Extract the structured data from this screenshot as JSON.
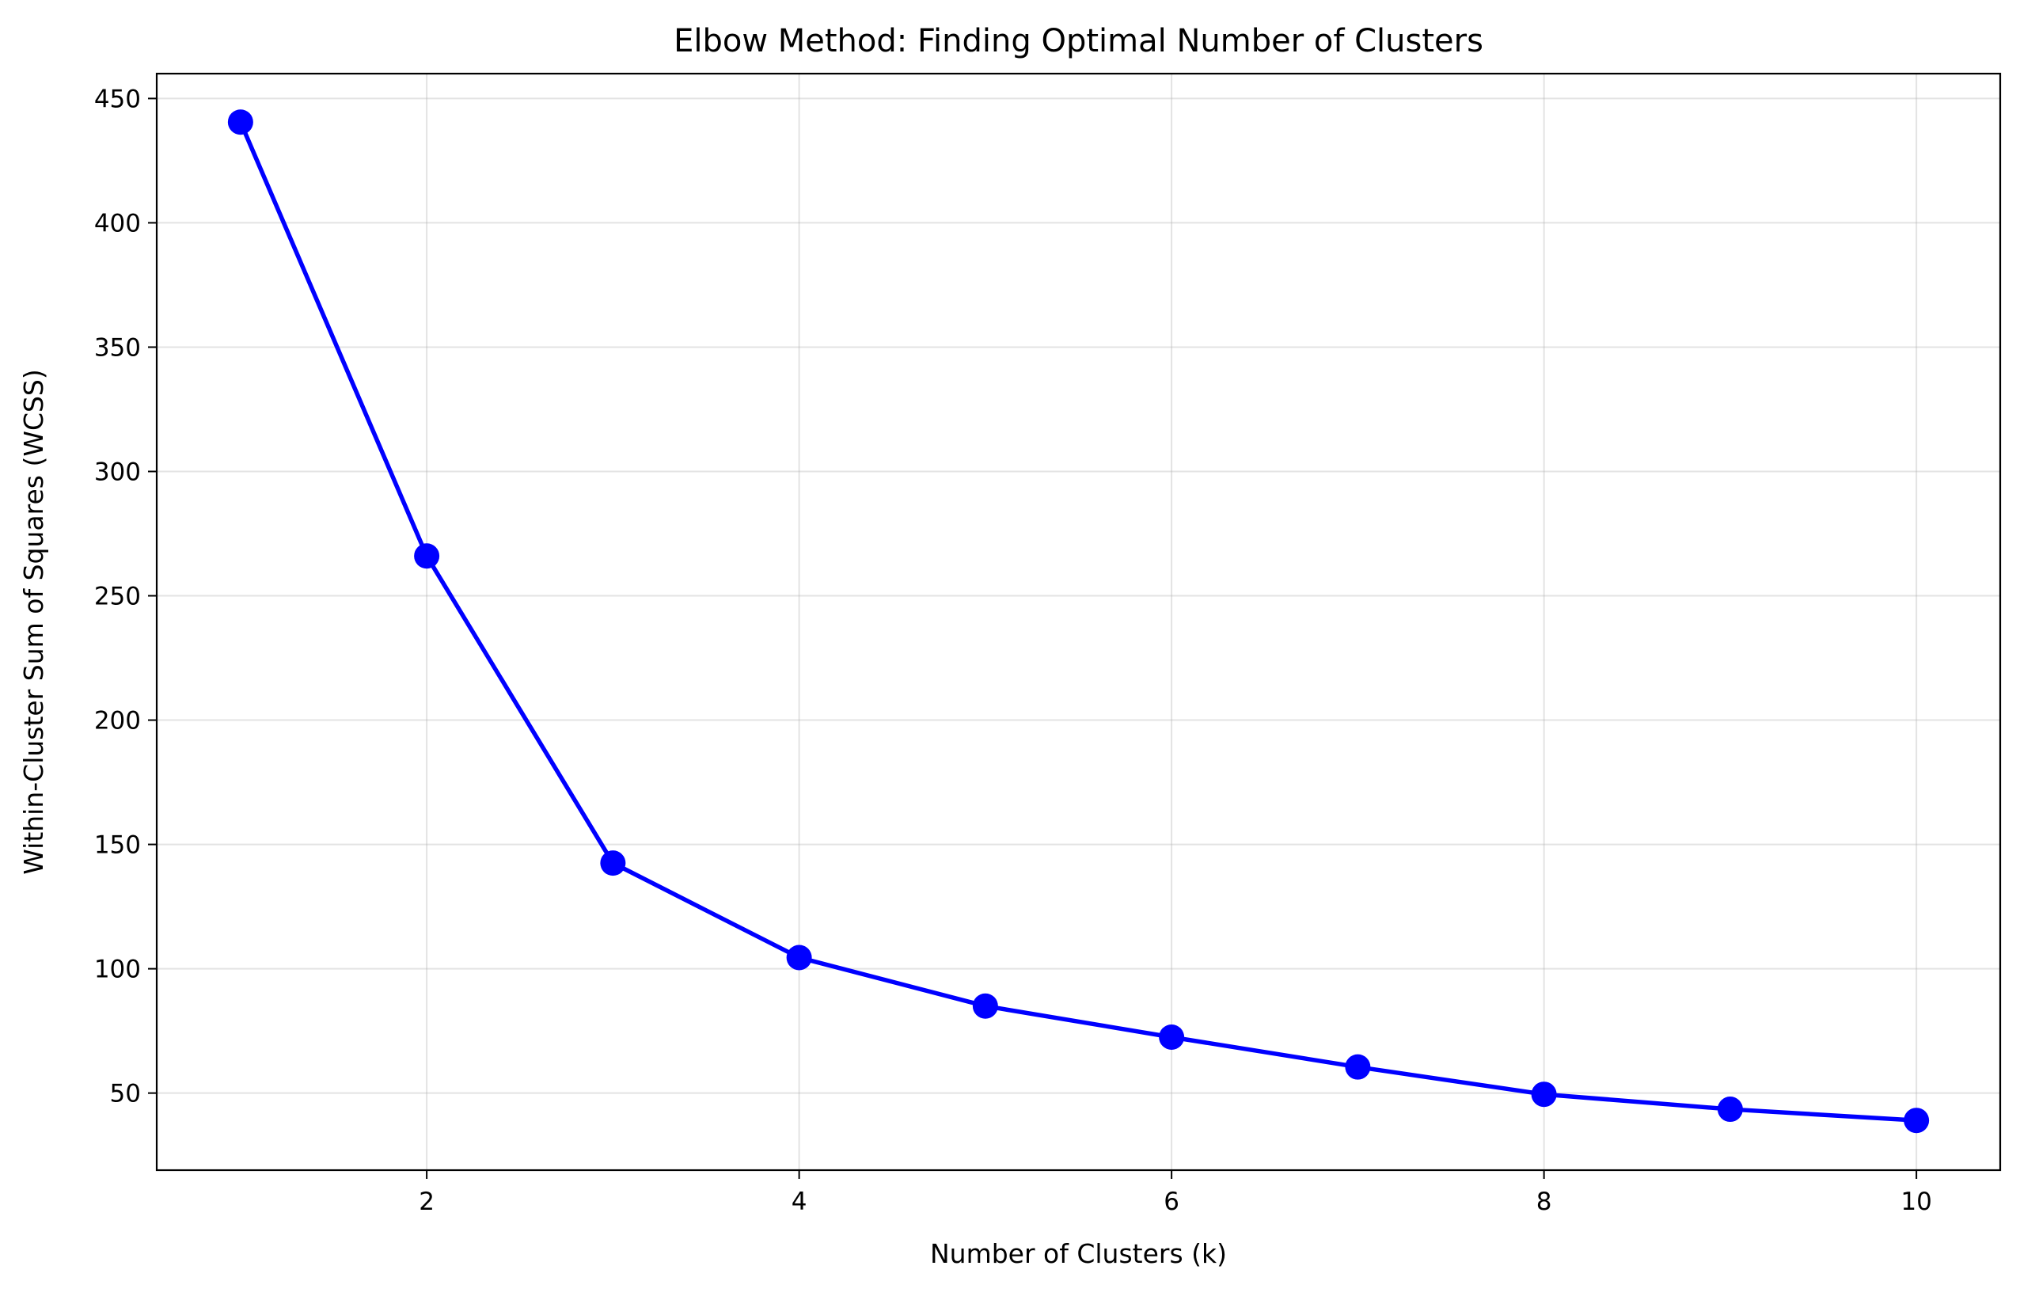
{
  "chart_data": {
    "type": "line",
    "title": "Elbow Method: Finding Optimal Number of Clusters",
    "xlabel": "Number of Clusters (k)",
    "ylabel": "Within-Cluster Sum of Squares (WCSS)",
    "xlim": [
      0.55,
      10.45
    ],
    "ylim": [
      19,
      460
    ],
    "xticks": [
      2,
      4,
      6,
      8,
      10
    ],
    "yticks": [
      50,
      100,
      150,
      200,
      250,
      300,
      350,
      400,
      450
    ],
    "grid": true,
    "series": [
      {
        "x": [
          1,
          2,
          3,
          4,
          5,
          6,
          7,
          8,
          9,
          10
        ],
        "y": [
          440.5,
          266.0,
          142.5,
          104.5,
          85.0,
          72.5,
          60.5,
          49.5,
          43.5,
          39.0
        ],
        "color": "#0000ff",
        "marker": "circle"
      }
    ]
  }
}
